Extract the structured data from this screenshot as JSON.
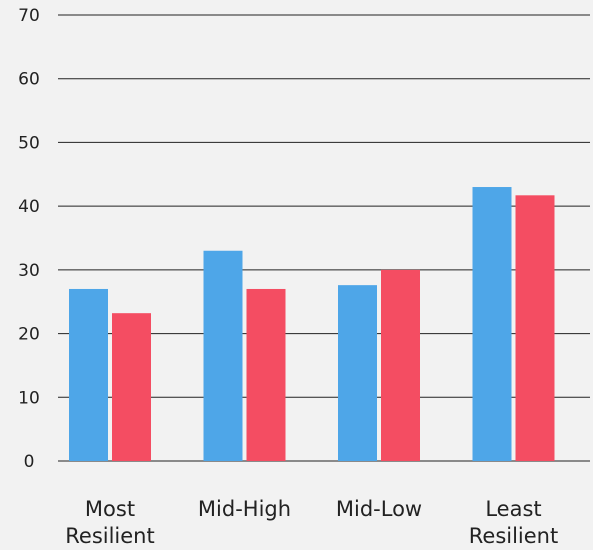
{
  "chart_data": {
    "type": "bar",
    "title": "",
    "xlabel": "",
    "ylabel": "",
    "categories": [
      [
        "Most",
        "Resilient"
      ],
      [
        "Mid-High"
      ],
      [
        "Mid-Low"
      ],
      [
        "Least",
        "Resilient"
      ]
    ],
    "series": [
      {
        "values": [
          27,
          33,
          27.6,
          43
        ],
        "color": "#4ea6e8"
      },
      {
        "values": [
          23.2,
          27,
          30,
          41.7
        ],
        "color": "#f44d62"
      }
    ],
    "ylim": [
      0,
      70
    ],
    "yticks": [
      0,
      10,
      20,
      30,
      40,
      50,
      60,
      70
    ],
    "grid": true,
    "legend": "none",
    "background": "#f2f2f2"
  }
}
